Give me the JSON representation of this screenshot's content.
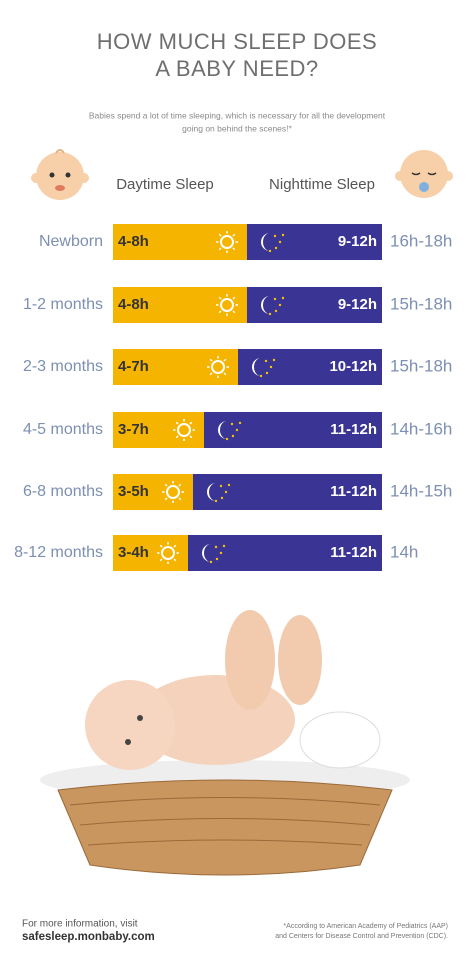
{
  "header": {
    "title_lines": [
      "HOW MUCH SLEEP DOES",
      "A BABY NEED?"
    ],
    "subtitle_lines": [
      "Babies spend a lot of time sleeping, which is necessary for all the development",
      "going on behind the scenes!*"
    ]
  },
  "columns": {
    "day": "Daytime Sleep",
    "night": "Nighttime Sleep"
  },
  "rows": [
    {
      "age": "Newborn",
      "day": "4-8h",
      "night": "9-12h",
      "total": "16h-18h"
    },
    {
      "age": "1-2 months",
      "day": "4-8h",
      "night": "9-12h",
      "total": "15h-18h"
    },
    {
      "age": "2-3 months",
      "day": "4-7h",
      "night": "10-12h",
      "total": "15h-18h"
    },
    {
      "age": "4-5 months",
      "day": "3-7h",
      "night": "11-12h",
      "total": "14h-16h"
    },
    {
      "age": "6-8 months",
      "day": "3-5h",
      "night": "11-12h",
      "total": "14h-15h"
    },
    {
      "age": "8-12 months",
      "day": "3-4h",
      "night": "11-12h",
      "total": "14h"
    }
  ],
  "footer": {
    "info": "For more information, visit",
    "site": "safesleep.monbaby.com",
    "note_lines": [
      "*According to American Academy of Pediatrics (AAP)",
      "and Centers for Disease Control and Prevention (CDC)."
    ]
  }
}
